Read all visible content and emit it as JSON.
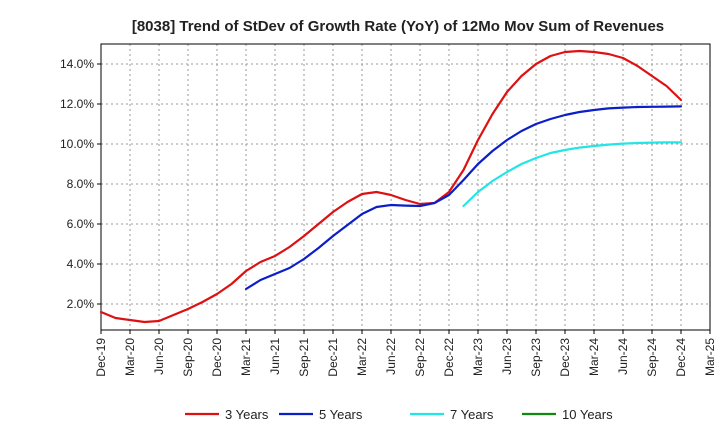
{
  "chart_data": {
    "type": "line",
    "title": "[8038]  Trend of StDev of Growth Rate (YoY) of 12Mo Mov Sum of Revenues",
    "xlabel": "",
    "ylabel": "",
    "x_ticks": [
      "Dec-19",
      "Mar-20",
      "Jun-20",
      "Sep-20",
      "Dec-20",
      "Mar-21",
      "Jun-21",
      "Sep-21",
      "Dec-21",
      "Mar-22",
      "Jun-22",
      "Sep-22",
      "Dec-22",
      "Mar-23",
      "Jun-23",
      "Sep-23",
      "Dec-23",
      "Mar-24",
      "Jun-24",
      "Sep-24",
      "Dec-24",
      "Mar-25"
    ],
    "y_ticks": [
      "2.0%",
      "4.0%",
      "6.0%",
      "8.0%",
      "10.0%",
      "12.0%",
      "14.0%"
    ],
    "y_tick_values": [
      2,
      4,
      6,
      8,
      10,
      12,
      14
    ],
    "ylim": [
      0.7,
      15.0
    ],
    "xlim_quarter_index": [
      0,
      21
    ],
    "grid": true,
    "legend_position": "bottom",
    "series": [
      {
        "name": "3 Years",
        "color": "#dd1111",
        "x": [
          0,
          0.5,
          1,
          1.5,
          2,
          2.5,
          3,
          3.5,
          4,
          4.5,
          5,
          5.5,
          6,
          6.5,
          7,
          7.5,
          8,
          8.5,
          9,
          9.5,
          10,
          10.5,
          11,
          11.5,
          12,
          12.5,
          13,
          13.5,
          14,
          14.5,
          15,
          15.5,
          16,
          16.5,
          17,
          17.5,
          18,
          18.5,
          19,
          19.5,
          20
        ],
        "values": [
          1.6,
          1.3,
          1.2,
          1.1,
          1.15,
          1.45,
          1.75,
          2.1,
          2.5,
          3.0,
          3.65,
          4.1,
          4.4,
          4.85,
          5.4,
          6.0,
          6.6,
          7.1,
          7.5,
          7.6,
          7.45,
          7.2,
          7.0,
          7.05,
          7.6,
          8.7,
          10.2,
          11.5,
          12.6,
          13.4,
          14.0,
          14.4,
          14.6,
          14.65,
          14.6,
          14.5,
          14.3,
          13.9,
          13.4,
          12.9,
          12.2
        ]
      },
      {
        "name": "5 Years",
        "color": "#0b1ec8",
        "x": [
          5,
          5.5,
          6,
          6.5,
          7,
          7.5,
          8,
          8.5,
          9,
          9.5,
          10,
          10.5,
          11,
          11.5,
          12,
          12.5,
          13,
          13.5,
          14,
          14.5,
          15,
          15.5,
          16,
          16.5,
          17,
          17.5,
          18,
          18.5,
          19,
          19.5,
          20
        ],
        "values": [
          2.75,
          3.2,
          3.5,
          3.8,
          4.25,
          4.8,
          5.4,
          5.95,
          6.5,
          6.85,
          6.95,
          6.92,
          6.9,
          7.05,
          7.45,
          8.2,
          9.0,
          9.65,
          10.2,
          10.65,
          11.0,
          11.25,
          11.45,
          11.6,
          11.7,
          11.78,
          11.82,
          11.85,
          11.86,
          11.87,
          11.88
        ]
      },
      {
        "name": "7 Years",
        "color": "#22e5e5",
        "x": [
          12.5,
          13,
          13.5,
          14,
          14.5,
          15,
          15.5,
          16,
          16.5,
          17,
          17.5,
          18,
          18.5,
          19,
          19.5,
          20
        ],
        "values": [
          6.9,
          7.6,
          8.15,
          8.6,
          9.0,
          9.3,
          9.55,
          9.7,
          9.82,
          9.9,
          9.97,
          10.02,
          10.05,
          10.07,
          10.08,
          10.08
        ]
      },
      {
        "name": "10 Years",
        "color": "#118811",
        "x": [],
        "values": []
      }
    ]
  }
}
